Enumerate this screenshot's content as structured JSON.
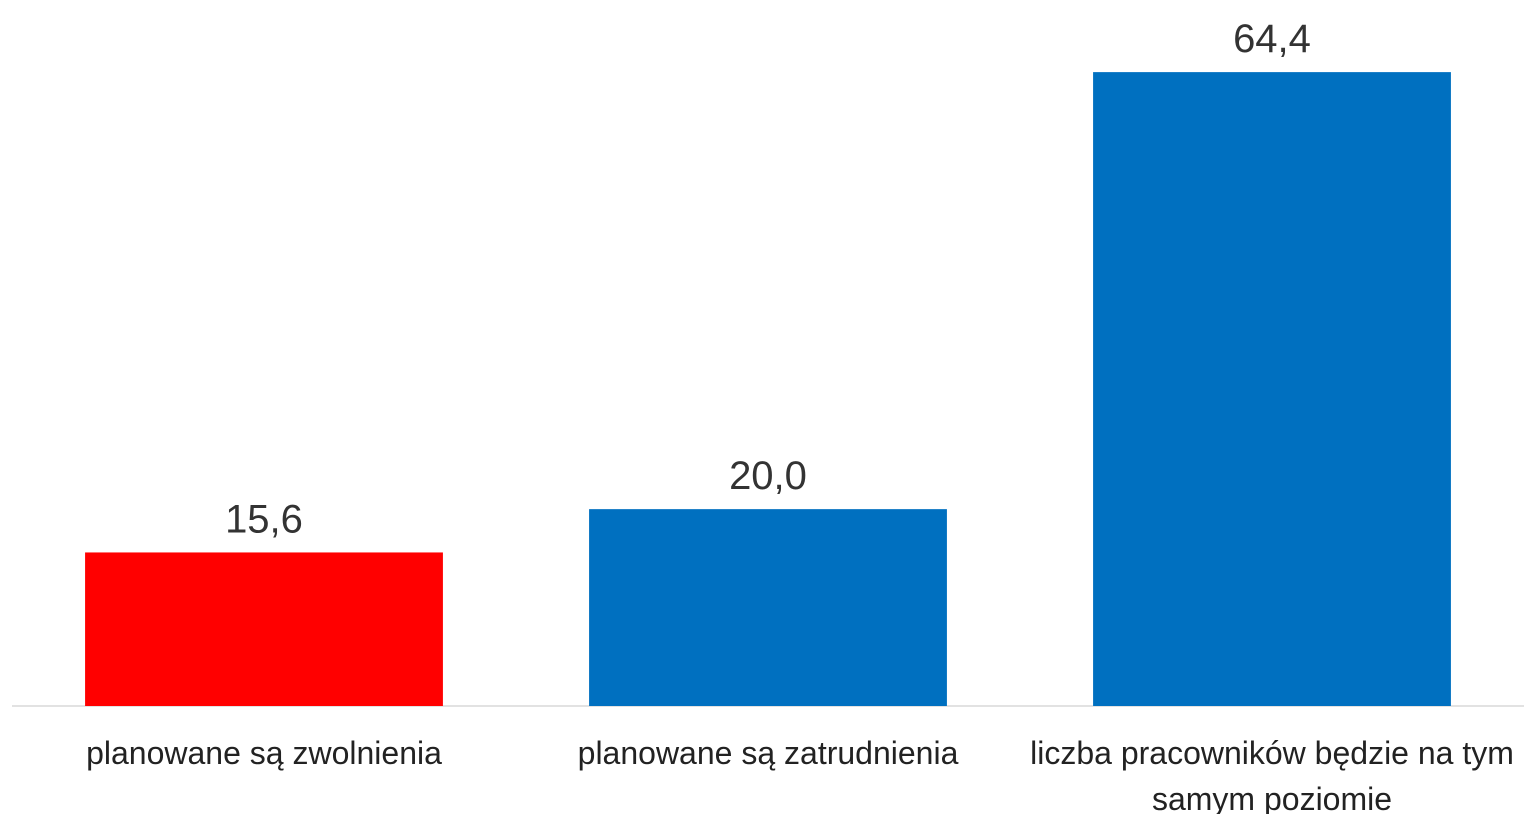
{
  "chart_data": {
    "type": "bar",
    "categories": [
      "planowane są zwolnienia",
      "planowane są zatrudnienia",
      "liczba pracowników będzie na tym samym poziomie"
    ],
    "values": [
      15.6,
      20.0,
      64.4
    ],
    "value_labels": [
      "15,6",
      "20,0",
      "64,4"
    ],
    "colors": [
      "#ff0000",
      "#0070c0",
      "#0070c0"
    ],
    "ylim": [
      0,
      70
    ]
  }
}
